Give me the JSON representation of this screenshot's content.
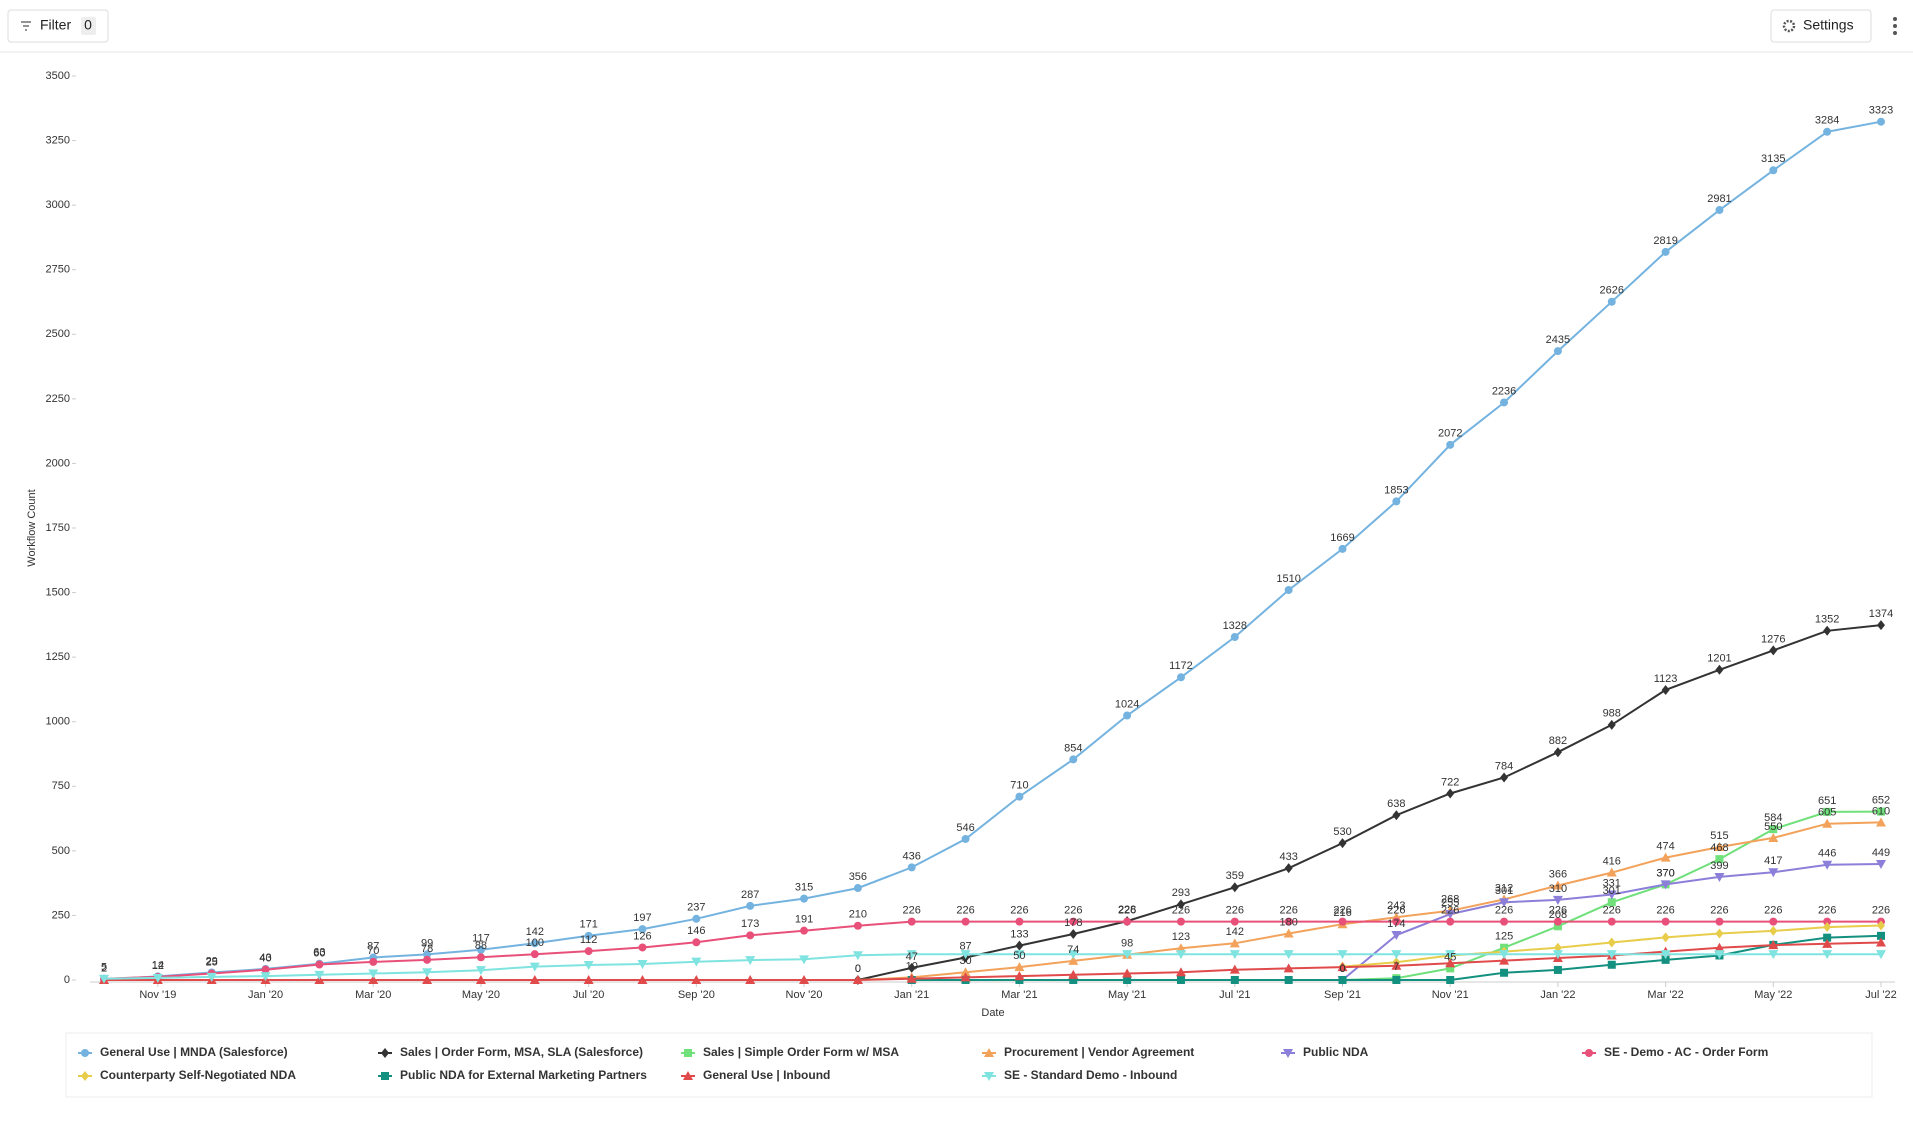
{
  "toolbar": {
    "filter": "Filter",
    "filter_count": "0",
    "settings": "Settings"
  },
  "chart_data": {
    "type": "line",
    "xlabel": "Date",
    "ylabel": "Workflow Count",
    "categories": [
      null,
      "Nov '19",
      null,
      "Jan '20",
      null,
      "Mar '20",
      null,
      "May '20",
      null,
      "Jul '20",
      null,
      "Sep '20",
      null,
      "Nov '20",
      null,
      "Jan '21",
      null,
      "Mar '21",
      null,
      "May '21",
      null,
      "Jul '21",
      null,
      "Sep '21",
      null,
      "Nov '21",
      null,
      "Jan '22",
      null,
      "Mar '22",
      null,
      "May '22",
      null,
      "Jul '22"
    ],
    "ylim": [
      0,
      3500
    ],
    "yticks": [
      0,
      250,
      500,
      750,
      1000,
      1250,
      1500,
      1750,
      2000,
      2250,
      2500,
      2750,
      3000,
      3250,
      3500
    ],
    "legend": "bottom",
    "series": [
      {
        "name": "General Use | MNDA (Salesforce)",
        "color": "#74b3e0",
        "marker": "circle",
        "labels": true,
        "values": [
          2,
          14,
          29,
          43,
          63,
          87,
          99,
          117,
          142,
          171,
          197,
          237,
          287,
          315,
          356,
          436,
          546,
          710,
          854,
          1024,
          1172,
          1328,
          1510,
          1669,
          1853,
          2072,
          2236,
          2435,
          2626,
          2819,
          2981,
          3135,
          3284,
          3323
        ]
      },
      {
        "name": "Sales | Order Form, MSA, SLA (Salesforce)",
        "color": "#333333",
        "marker": "diamond",
        "labels": true,
        "values": [
          null,
          null,
          null,
          null,
          null,
          null,
          null,
          null,
          null,
          null,
          null,
          null,
          null,
          null,
          0,
          47,
          87,
          133,
          178,
          228,
          293,
          359,
          433,
          530,
          638,
          722,
          784,
          882,
          988,
          1123,
          1201,
          1276,
          1352,
          1374
        ]
      },
      {
        "name": "Sales | Simple Order Form w/ MSA",
        "color": "#6fe07a",
        "marker": "square",
        "labels": true,
        "values": [
          null,
          null,
          null,
          null,
          null,
          null,
          null,
          null,
          null,
          null,
          null,
          null,
          null,
          null,
          null,
          null,
          null,
          null,
          null,
          null,
          null,
          null,
          null,
          0,
          7,
          45,
          125,
          208,
          301,
          370,
          468,
          584,
          651,
          652
        ]
      },
      {
        "name": "Procurement | Vendor Agreement",
        "color": "#f2a25a",
        "marker": "triangle",
        "labels": true,
        "values": [
          null,
          null,
          null,
          null,
          null,
          null,
          null,
          null,
          null,
          null,
          null,
          null,
          null,
          null,
          0,
          10,
          30,
          50,
          74,
          98,
          123,
          142,
          180,
          216,
          243,
          268,
          312,
          366,
          416,
          474,
          515,
          550,
          605,
          610
        ]
      },
      {
        "name": "Public NDA",
        "color": "#8b7fd9",
        "marker": "triangle-down",
        "labels": true,
        "values": [
          null,
          null,
          null,
          null,
          null,
          null,
          null,
          null,
          null,
          null,
          null,
          null,
          null,
          null,
          null,
          null,
          null,
          null,
          null,
          null,
          null,
          null,
          null,
          0,
          174,
          255,
          301,
          310,
          331,
          370,
          399,
          417,
          446,
          449
        ]
      },
      {
        "name": "SE - Demo - AC - Order Form",
        "color": "#e8507a",
        "marker": "circle",
        "labels": true,
        "values": [
          5,
          12,
          25,
          40,
          60,
          70,
          78,
          88,
          100,
          112,
          126,
          146,
          173,
          191,
          210,
          226,
          226,
          226,
          226,
          226,
          226,
          226,
          226,
          226,
          226,
          226,
          226,
          226,
          226,
          226,
          226,
          226,
          226,
          226
        ]
      },
      {
        "name": "Counterparty Self-Negotiated NDA",
        "color": "#e8cd4a",
        "marker": "diamond",
        "labels": false,
        "values": [
          null,
          null,
          null,
          null,
          null,
          null,
          null,
          null,
          null,
          null,
          null,
          null,
          null,
          null,
          null,
          null,
          null,
          null,
          null,
          null,
          null,
          null,
          null,
          52,
          69,
          95,
          110,
          125,
          145,
          165,
          180,
          190,
          205,
          211
        ]
      },
      {
        "name": "Public NDA for External Marketing Partners",
        "color": "#13907f",
        "marker": "square",
        "labels": false,
        "values": [
          null,
          null,
          null,
          null,
          null,
          null,
          null,
          null,
          null,
          null,
          null,
          null,
          null,
          null,
          null,
          0,
          0,
          0,
          0,
          0,
          0,
          0,
          0,
          0,
          0,
          0,
          28,
          39,
          59,
          78,
          95,
          136,
          164,
          171
        ]
      },
      {
        "name": "General Use | Inbound",
        "color": "#e04a4a",
        "marker": "triangle",
        "labels": false,
        "values": [
          0,
          0,
          0,
          0,
          0,
          0,
          0,
          0,
          0,
          0,
          0,
          0,
          0,
          0,
          0,
          5,
          10,
          15,
          20,
          25,
          30,
          40,
          45,
          50,
          55,
          65,
          75,
          85,
          95,
          110,
          125,
          135,
          140,
          145
        ]
      },
      {
        "name": "SE - Standard Demo - Inbound",
        "color": "#7fe3e0",
        "marker": "triangle-down",
        "labels": false,
        "values": [
          5,
          8,
          12,
          15,
          20,
          25,
          30,
          38,
          52,
          58,
          62,
          71,
          77,
          80,
          96,
          100,
          100,
          100,
          100,
          100,
          100,
          100,
          100,
          100,
          100,
          100,
          100,
          100,
          100,
          100,
          100,
          100,
          100,
          100
        ]
      }
    ]
  }
}
